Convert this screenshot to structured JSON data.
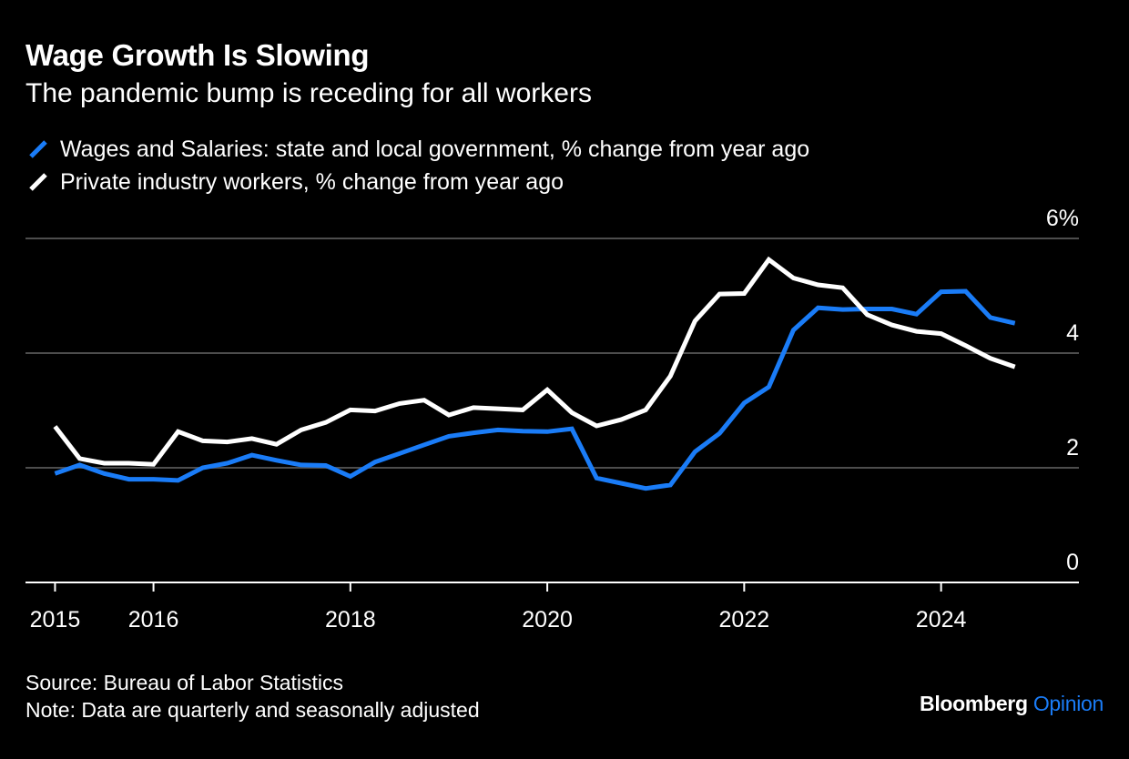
{
  "header": {
    "title": "Wage Growth Is Slowing",
    "subtitle": "The pandemic bump is receding for all workers"
  },
  "footer": {
    "source": "Source: Bureau of Labor Statistics",
    "note": "Note: Data are quarterly and seasonally adjusted"
  },
  "brand": {
    "name": "Bloomberg",
    "product": "Opinion",
    "product_color": "#1a7cf7"
  },
  "colors": {
    "background": "#000000",
    "gridline": "#4d4d4d",
    "axis": "#ffffff"
  },
  "chart_data": {
    "type": "line",
    "title": "Wage Growth Is Slowing",
    "subtitle": "The pandemic bump is receding for all workers",
    "x_tick_labels": [
      "2015",
      "2016",
      "2018",
      "2020",
      "2022",
      "2024"
    ],
    "x_tick_values": [
      2015,
      2016,
      2018,
      2020,
      2022,
      2024
    ],
    "y_tick_labels": [
      "0",
      "2",
      "4",
      "6%"
    ],
    "y_tick_values": [
      0,
      2,
      4,
      6
    ],
    "xlim": [
      2014.7,
      2025.4
    ],
    "ylim": [
      0,
      6
    ],
    "grid": true,
    "legend_position": "top-left",
    "x": [
      2015.0,
      2015.25,
      2015.5,
      2015.75,
      2016.0,
      2016.25,
      2016.5,
      2016.75,
      2017.0,
      2017.25,
      2017.5,
      2017.75,
      2018.0,
      2018.25,
      2018.5,
      2018.75,
      2019.0,
      2019.25,
      2019.5,
      2019.75,
      2020.0,
      2020.25,
      2020.5,
      2020.75,
      2021.0,
      2021.25,
      2021.5,
      2021.75,
      2022.0,
      2022.25,
      2022.5,
      2022.75,
      2023.0,
      2023.25,
      2023.5,
      2023.75,
      2024.0,
      2024.25,
      2024.5,
      2024.75
    ],
    "series": [
      {
        "name": "Wages and Salaries: state and local government, % change from year ago",
        "color": "#1a7cf7",
        "values": [
          1.9,
          2.05,
          1.9,
          1.8,
          1.8,
          1.78,
          2.0,
          2.08,
          2.22,
          2.13,
          2.05,
          2.04,
          1.85,
          2.1,
          2.25,
          2.4,
          2.55,
          2.61,
          2.66,
          2.64,
          2.63,
          2.68,
          1.82,
          1.73,
          1.64,
          1.7,
          2.28,
          2.6,
          3.13,
          3.41,
          4.4,
          4.79,
          4.76,
          4.77,
          4.77,
          4.68,
          5.07,
          5.08,
          4.62,
          4.52
        ]
      },
      {
        "name": "Private industry workers, % change from year ago",
        "color": "#ffffff",
        "values": [
          2.72,
          2.16,
          2.08,
          2.08,
          2.06,
          2.63,
          2.47,
          2.45,
          2.51,
          2.41,
          2.66,
          2.79,
          3.01,
          2.99,
          3.12,
          3.18,
          2.92,
          3.05,
          3.03,
          3.01,
          3.36,
          2.96,
          2.73,
          2.84,
          3.01,
          3.6,
          4.56,
          5.03,
          5.04,
          5.63,
          5.31,
          5.19,
          5.14,
          4.67,
          4.49,
          4.38,
          4.34,
          4.13,
          3.91,
          3.76
        ]
      }
    ]
  }
}
